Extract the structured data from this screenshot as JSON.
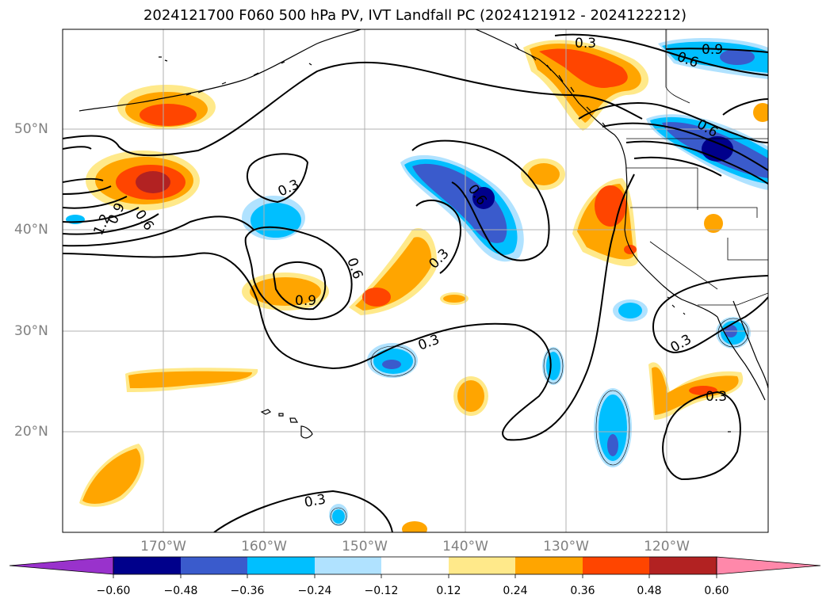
{
  "title": "2024121700 F060 500 hPa PV, IVT Landfall PC (2024121912 - 2024122212)",
  "lat_ticks": [
    "50°N",
    "40°N",
    "30°N",
    "20°N"
  ],
  "lon_ticks": [
    "170°W",
    "160°W",
    "150°W",
    "140°W",
    "130°W",
    "120°W"
  ],
  "contour_labels": [
    "0.3",
    "0.6",
    "0.9",
    "1.2"
  ],
  "colorbar": {
    "tick_labels": [
      "−0.60",
      "−0.48",
      "−0.36",
      "−0.24",
      "−0.12",
      "0.12",
      "0.24",
      "0.36",
      "0.48",
      "0.60"
    ],
    "colors": [
      "#9932cc",
      "#00008b",
      "#3a5bcc",
      "#00bfff",
      "#b0e2ff",
      "#ffffff",
      "#ffe98a",
      "#ffa500",
      "#ff4500",
      "#b22222",
      "#ff88aa"
    ]
  },
  "colors": {
    "neg_lightblue": "#b0e2ff",
    "neg_blue": "#00bfff",
    "neg_royal": "#3a5bcc",
    "neg_navy": "#00008b",
    "pos_yellow": "#ffe98a",
    "pos_orange": "#ffa500",
    "pos_redorange": "#ff4500",
    "pos_firebrick": "#b22222"
  }
}
